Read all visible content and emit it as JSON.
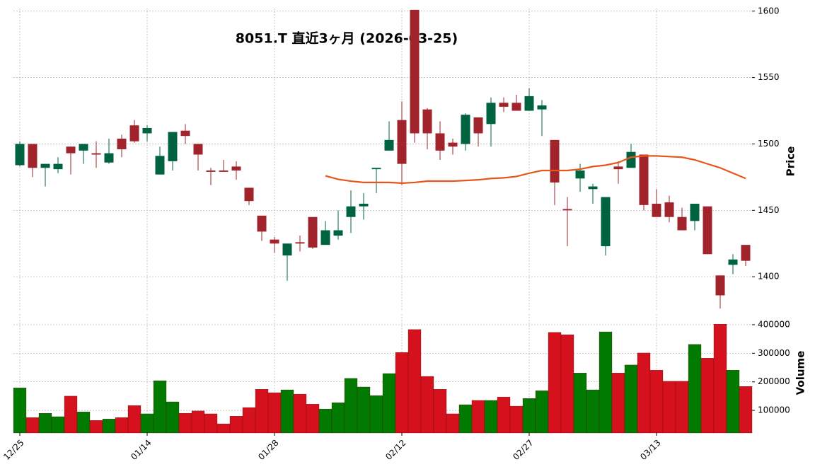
{
  "chart_data": {
    "type": "candlestick",
    "title": "8051.T  直近3ヶ月 (2026-03-25)",
    "ylabel": "Price",
    "categories": [
      "12/25",
      null,
      null,
      null,
      null,
      null,
      null,
      null,
      null,
      null,
      "01/14",
      null,
      null,
      null,
      null,
      null,
      null,
      null,
      null,
      null,
      "01/28",
      null,
      null,
      null,
      null,
      null,
      null,
      null,
      null,
      null,
      "02/12",
      null,
      null,
      null,
      null,
      null,
      null,
      null,
      null,
      null,
      "02/27",
      null,
      null,
      null,
      null,
      null,
      null,
      null,
      null,
      null,
      "03/13",
      null,
      null,
      null,
      null,
      null,
      null,
      null
    ],
    "open": [
      1484,
      1500,
      1482,
      1481,
      1498,
      1495,
      1493,
      1486,
      1504,
      1514,
      1508,
      1477,
      1487,
      1510,
      1500,
      1480,
      1480,
      1483,
      1467,
      1446,
      1428,
      1416,
      1426,
      1445,
      1424,
      1431,
      1445,
      1453,
      1481,
      1495,
      1518,
      1601,
      1526,
      1508,
      1501,
      1500,
      1520,
      1515,
      1531,
      1531,
      1525,
      1526,
      1503,
      1451,
      1474,
      1466,
      1423,
      1483,
      1482,
      1492,
      1455,
      1456,
      1445,
      1442,
      1453,
      1401,
      1409,
      1424
    ],
    "high": [
      1502,
      1500,
      1485,
      1490,
      1498,
      1500,
      1502,
      1504,
      1507,
      1518,
      1514,
      1498,
      1509,
      1515,
      1500,
      1482,
      1488,
      1487,
      1467,
      1446,
      1430,
      1425,
      1431,
      1445,
      1442,
      1450,
      1465,
      1463,
      1482,
      1517,
      1532,
      1601,
      1527,
      1517,
      1504,
      1523,
      1520,
      1535,
      1535,
      1537,
      1542,
      1533,
      1503,
      1460,
      1485,
      1470,
      1460,
      1487,
      1500,
      1492,
      1466,
      1461,
      1452,
      1455,
      1453,
      1401,
      1417,
      1424
    ],
    "low": [
      1483,
      1475,
      1468,
      1478,
      1477,
      1485,
      1482,
      1485,
      1490,
      1501,
      1502,
      1477,
      1480,
      1500,
      1480,
      1469,
      1479,
      1473,
      1454,
      1427,
      1418,
      1397,
      1419,
      1421,
      1424,
      1428,
      1433,
      1443,
      1463,
      1495,
      1469,
      1501,
      1496,
      1488,
      1492,
      1495,
      1498,
      1498,
      1524,
      1525,
      1525,
      1506,
      1454,
      1423,
      1464,
      1455,
      1416,
      1470,
      1482,
      1450,
      1445,
      1441,
      1435,
      1435,
      1417,
      1376,
      1402,
      1408
    ],
    "close": [
      1500,
      1482,
      1485,
      1485,
      1493,
      1500,
      1492,
      1493,
      1496,
      1502,
      1512,
      1491,
      1509,
      1506,
      1492,
      1479,
      1479,
      1480,
      1457,
      1434,
      1425,
      1425,
      1425,
      1422,
      1435,
      1435,
      1453,
      1455,
      1482,
      1503,
      1485,
      1508,
      1508,
      1495,
      1498,
      1522,
      1508,
      1531,
      1528,
      1525,
      1536,
      1529,
      1471,
      1450,
      1480,
      1468,
      1460,
      1481,
      1494,
      1454,
      1445,
      1445,
      1435,
      1455,
      1417,
      1386,
      1413,
      1412
    ],
    "up_color": "#006340",
    "down_color": "#a1232b",
    "ma": {
      "color": "#e8551a",
      "values": [
        null,
        null,
        null,
        null,
        null,
        null,
        null,
        null,
        null,
        null,
        null,
        null,
        null,
        null,
        null,
        null,
        null,
        null,
        null,
        null,
        null,
        null,
        null,
        null,
        1476,
        1473.4,
        1472,
        1471,
        1471,
        1471,
        1470.5,
        1471,
        1472,
        1472,
        1472,
        1472.5,
        1473,
        1474,
        1474.5,
        1475.5,
        1478,
        1480,
        1480,
        1480,
        1481,
        1483,
        1484,
        1486,
        1490,
        1491,
        1491,
        1490.5,
        1490,
        1488,
        1485,
        1482,
        1478,
        1474
      ]
    },
    "ylim": [
      1374,
      1602
    ],
    "yticks": [
      1400,
      1450,
      1500,
      1550,
      1600
    ],
    "grid": true,
    "volume": {
      "ylabel": "Volume",
      "values": [
        179000,
        75000,
        90000,
        78000,
        150000,
        95000,
        65000,
        70000,
        75000,
        117000,
        88000,
        204000,
        130000,
        90000,
        98000,
        88000,
        53000,
        80000,
        110000,
        174000,
        162000,
        172000,
        157000,
        122000,
        105000,
        127000,
        212000,
        182000,
        152000,
        229000,
        303000,
        383000,
        219000,
        174000,
        88000,
        120000,
        135000,
        135000,
        147000,
        115000,
        142000,
        169000,
        373000,
        365000,
        231000,
        172000,
        375000,
        231000,
        259000,
        301000,
        241000,
        202000,
        202000,
        331000,
        283000,
        402000,
        241000,
        184000
      ],
      "up_color": "#007a00",
      "down_color": "#d4111c",
      "ylim": [
        21000,
        437000
      ],
      "yticks": [
        100000,
        200000,
        300000,
        400000
      ]
    }
  }
}
